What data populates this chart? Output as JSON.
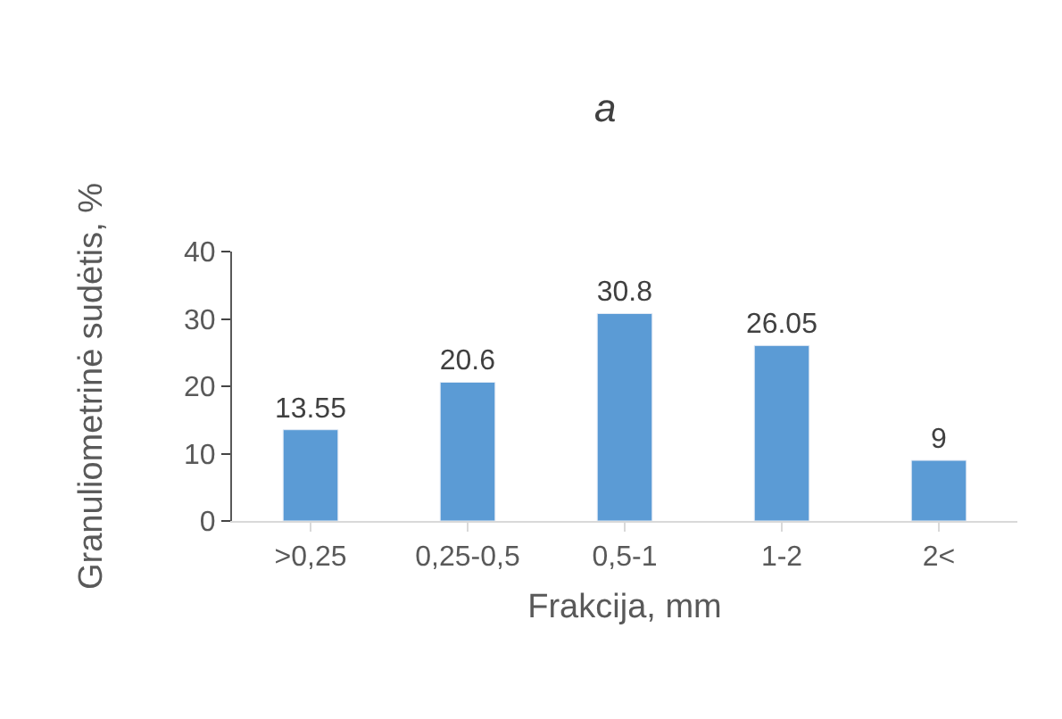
{
  "chart_data": {
    "type": "bar",
    "title": "a",
    "xlabel": "Frakcija, mm",
    "ylabel": "Granuliometrinė sudėtis, %",
    "categories": [
      ">0,25",
      "0,25-0,5",
      "0,5-1",
      "1-2",
      "2<"
    ],
    "values": [
      13.55,
      20.6,
      30.8,
      26.05,
      9
    ],
    "color": "#5b9bd5",
    "ylim": [
      0,
      40
    ],
    "yticks": [
      0,
      10,
      20,
      30,
      40
    ],
    "data_labels": true
  }
}
